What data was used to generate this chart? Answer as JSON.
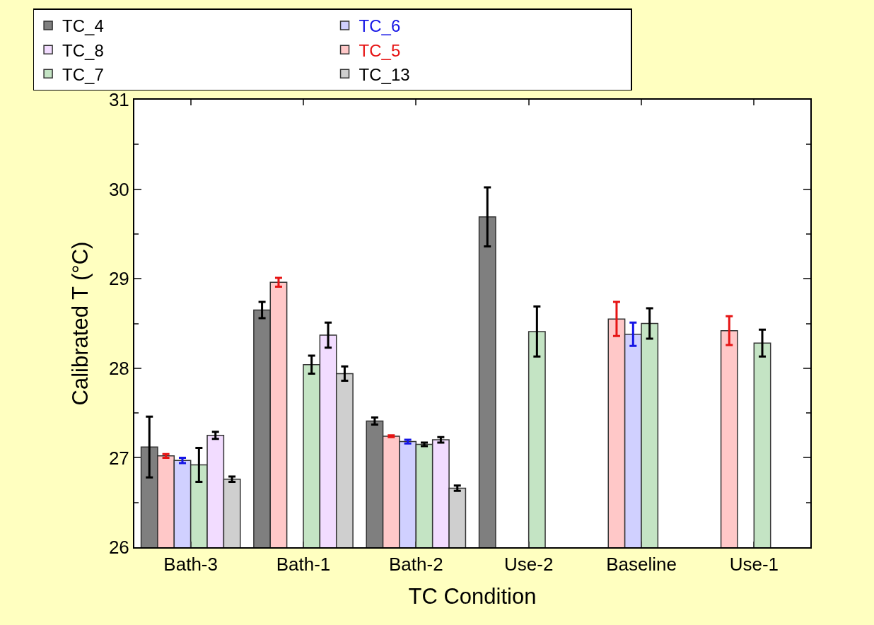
{
  "chart_data": {
    "type": "bar",
    "xlabel": "TC Condition",
    "ylabel": "Calibrated T (°C)",
    "categories": [
      "Bath-3",
      "Bath-1",
      "Bath-2",
      "Use-2",
      "Baseline",
      "Use-1"
    ],
    "ylim": [
      26,
      31
    ],
    "yticks": [
      26,
      27,
      28,
      29,
      30,
      31
    ],
    "grid": false,
    "legend": "top",
    "series": [
      {
        "name": "TC_4",
        "color": "#7f7f7f",
        "values": [
          27.12,
          28.65,
          27.41,
          29.69,
          null,
          null
        ],
        "errors": [
          0.34,
          0.09,
          0.04,
          0.33,
          null,
          null
        ]
      },
      {
        "name": "TC_5",
        "color": "#ffc8c8",
        "values": [
          27.02,
          28.96,
          27.24,
          null,
          28.55,
          28.42
        ],
        "errors": [
          0.02,
          0.05,
          0.01,
          null,
          0.19,
          0.16
        ]
      },
      {
        "name": "TC_6",
        "color": "#d0d0ff",
        "values": [
          26.97,
          null,
          27.18,
          null,
          28.38,
          null
        ],
        "errors": [
          0.03,
          null,
          0.02,
          null,
          0.13,
          null
        ]
      },
      {
        "name": "TC_7",
        "color": "#c4e4c4",
        "values": [
          26.92,
          28.04,
          27.15,
          28.41,
          28.5,
          28.28
        ],
        "errors": [
          0.19,
          0.1,
          0.02,
          0.28,
          0.17,
          0.15
        ]
      },
      {
        "name": "TC_8",
        "color": "#f2dcff",
        "values": [
          27.25,
          28.37,
          27.2,
          null,
          null,
          null
        ],
        "errors": [
          0.04,
          0.14,
          0.03,
          null,
          null,
          null
        ]
      },
      {
        "name": "TC_13",
        "color": "#cfcfcf",
        "values": [
          26.76,
          27.94,
          26.66,
          null,
          null,
          null
        ],
        "errors": [
          0.03,
          0.08,
          0.03,
          null,
          null,
          null
        ]
      }
    ]
  }
}
